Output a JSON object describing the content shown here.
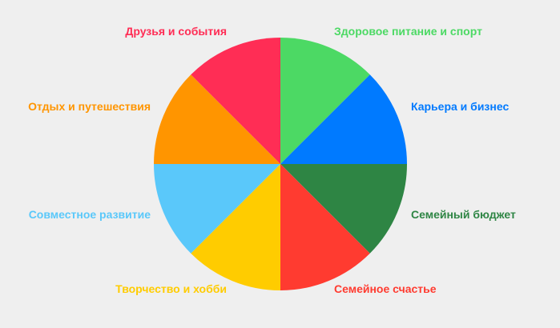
{
  "chart_data": {
    "type": "pie",
    "slices": [
      {
        "label": "Здоровое питание и спорт",
        "value": 1,
        "color": "#4cd964"
      },
      {
        "label": "Карьера и бизнес",
        "value": 1,
        "color": "#007aff"
      },
      {
        "label": "Семейный бюджет",
        "value": 1,
        "color": "#2e8544"
      },
      {
        "label": "Семейное счастье",
        "value": 1,
        "color": "#ff3b30"
      },
      {
        "label": "Творчество и хобби",
        "value": 1,
        "color": "#ffcc00"
      },
      {
        "label": "Совместное развитие",
        "value": 1,
        "color": "#5ac8fa"
      },
      {
        "label": "Отдых и путешествия",
        "value": 1,
        "color": "#ff9500"
      },
      {
        "label": "Друзья и события",
        "value": 1,
        "color": "#ff2d55"
      }
    ],
    "start": "top",
    "direction": "clockwise",
    "legend": "none"
  },
  "background": "#efefef"
}
